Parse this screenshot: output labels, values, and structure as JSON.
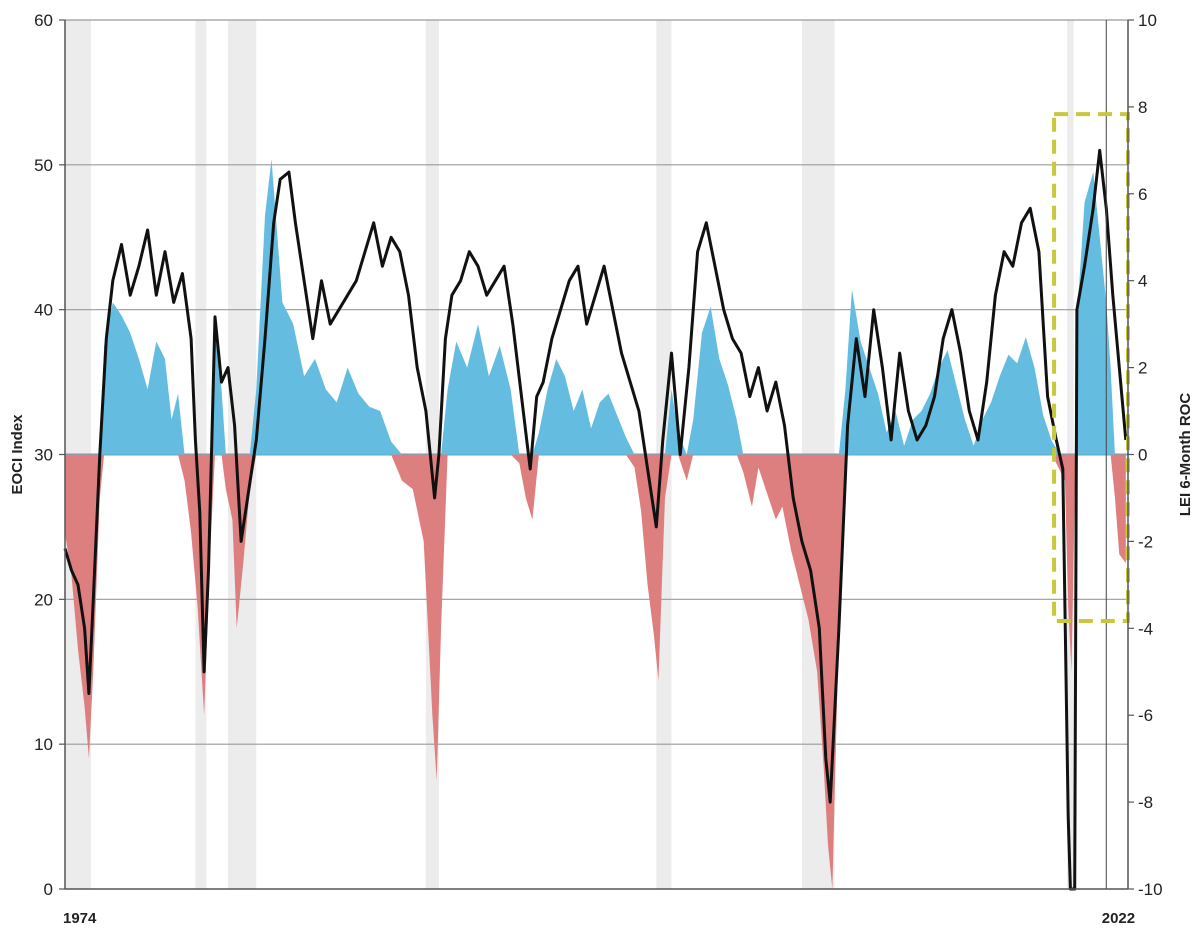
{
  "chart_data": {
    "type": "area",
    "title": "",
    "left_axis": {
      "label": "EOCI Index",
      "ylim": [
        0,
        60
      ],
      "ticks": [
        "0",
        "10",
        "20",
        "30",
        "40",
        "50",
        "60"
      ]
    },
    "right_axis": {
      "label": "LEI 6-Month ROC",
      "ylim": [
        -10,
        10
      ],
      "ticks": [
        "-10",
        "-8",
        "-6",
        "-4",
        "-2",
        "0",
        "2",
        "4",
        "6",
        "8",
        "10"
      ]
    },
    "x_axis": {
      "xlim": [
        1974.0,
        2022.9
      ],
      "tick_labels": [
        {
          "year": 1974.0,
          "label": "1974"
        },
        {
          "year": 2022.0,
          "label": "2022"
        }
      ]
    },
    "recession_bands": [
      [
        1974.0,
        1975.2
      ],
      [
        1980.0,
        1980.5
      ],
      [
        1981.5,
        1982.8
      ],
      [
        1990.6,
        1991.2
      ],
      [
        2001.2,
        2001.9
      ],
      [
        2007.9,
        2009.4
      ],
      [
        2020.1,
        2020.4
      ]
    ],
    "marker_line_year": 2021.9,
    "highlight_box": {
      "x_range": [
        2019.5,
        2022.9
      ],
      "y_range": [
        18.5,
        53.5
      ],
      "color": "#c8c83a"
    },
    "grid": true,
    "colors": {
      "eoci_line": "#111111",
      "lei_positive": "#64bde0",
      "lei_negative": "#dd7f7f",
      "recession_band": "#ececec",
      "grid": "#9a9a9a"
    },
    "series": [
      {
        "name": "EOCI Index",
        "axis": "left",
        "style": "line",
        "points": [
          [
            1974.0,
            23.5
          ],
          [
            1974.3,
            22
          ],
          [
            1974.6,
            21
          ],
          [
            1974.9,
            18
          ],
          [
            1975.1,
            13.5
          ],
          [
            1975.3,
            20
          ],
          [
            1975.6,
            30
          ],
          [
            1975.9,
            38
          ],
          [
            1976.2,
            42
          ],
          [
            1976.6,
            44.5
          ],
          [
            1977.0,
            41
          ],
          [
            1977.4,
            43
          ],
          [
            1977.8,
            45.5
          ],
          [
            1978.2,
            41
          ],
          [
            1978.6,
            44
          ],
          [
            1979.0,
            40.5
          ],
          [
            1979.4,
            42.5
          ],
          [
            1979.8,
            38
          ],
          [
            1980.0,
            31
          ],
          [
            1980.2,
            26
          ],
          [
            1980.4,
            15
          ],
          [
            1980.6,
            22
          ],
          [
            1980.9,
            39.5
          ],
          [
            1981.2,
            35
          ],
          [
            1981.5,
            36
          ],
          [
            1981.8,
            32
          ],
          [
            1982.1,
            24
          ],
          [
            1982.4,
            27
          ],
          [
            1982.8,
            31
          ],
          [
            1983.2,
            38
          ],
          [
            1983.6,
            46
          ],
          [
            1983.9,
            49
          ],
          [
            1984.3,
            49.5
          ],
          [
            1984.6,
            46
          ],
          [
            1985.0,
            42
          ],
          [
            1985.4,
            38
          ],
          [
            1985.8,
            42
          ],
          [
            1986.2,
            39
          ],
          [
            1986.6,
            40
          ],
          [
            1987.0,
            41
          ],
          [
            1987.4,
            42
          ],
          [
            1987.8,
            44
          ],
          [
            1988.2,
            46
          ],
          [
            1988.6,
            43
          ],
          [
            1989.0,
            45
          ],
          [
            1989.4,
            44
          ],
          [
            1989.8,
            41
          ],
          [
            1990.2,
            36
          ],
          [
            1990.6,
            33
          ],
          [
            1991.0,
            27
          ],
          [
            1991.2,
            30
          ],
          [
            1991.5,
            38
          ],
          [
            1991.8,
            41
          ],
          [
            1992.2,
            42
          ],
          [
            1992.6,
            44
          ],
          [
            1993.0,
            43
          ],
          [
            1993.4,
            41
          ],
          [
            1993.8,
            42
          ],
          [
            1994.2,
            43
          ],
          [
            1994.6,
            39
          ],
          [
            1995.0,
            34
          ],
          [
            1995.4,
            29
          ],
          [
            1995.7,
            34
          ],
          [
            1996.0,
            35
          ],
          [
            1996.4,
            38
          ],
          [
            1996.8,
            40
          ],
          [
            1997.2,
            42
          ],
          [
            1997.6,
            43
          ],
          [
            1998.0,
            39
          ],
          [
            1998.4,
            41
          ],
          [
            1998.8,
            43
          ],
          [
            1999.2,
            40
          ],
          [
            1999.6,
            37
          ],
          [
            2000.0,
            35
          ],
          [
            2000.4,
            33
          ],
          [
            2000.8,
            29
          ],
          [
            2001.2,
            25
          ],
          [
            2001.5,
            31
          ],
          [
            2001.9,
            37
          ],
          [
            2002.3,
            30
          ],
          [
            2002.7,
            36
          ],
          [
            2003.1,
            44
          ],
          [
            2003.5,
            46
          ],
          [
            2003.9,
            43
          ],
          [
            2004.3,
            40
          ],
          [
            2004.7,
            38
          ],
          [
            2005.1,
            37
          ],
          [
            2005.5,
            34
          ],
          [
            2005.9,
            36
          ],
          [
            2006.3,
            33
          ],
          [
            2006.7,
            35
          ],
          [
            2007.1,
            32
          ],
          [
            2007.5,
            27
          ],
          [
            2007.9,
            24
          ],
          [
            2008.3,
            22
          ],
          [
            2008.7,
            18
          ],
          [
            2009.0,
            9
          ],
          [
            2009.2,
            6
          ],
          [
            2009.6,
            18
          ],
          [
            2010.0,
            32
          ],
          [
            2010.4,
            38
          ],
          [
            2010.8,
            34
          ],
          [
            2011.2,
            40
          ],
          [
            2011.6,
            36
          ],
          [
            2012.0,
            31
          ],
          [
            2012.4,
            37
          ],
          [
            2012.8,
            33
          ],
          [
            2013.2,
            31
          ],
          [
            2013.6,
            32
          ],
          [
            2014.0,
            34
          ],
          [
            2014.4,
            38
          ],
          [
            2014.8,
            40
          ],
          [
            2015.2,
            37
          ],
          [
            2015.6,
            33
          ],
          [
            2016.0,
            31
          ],
          [
            2016.4,
            35
          ],
          [
            2016.8,
            41
          ],
          [
            2017.2,
            44
          ],
          [
            2017.6,
            43
          ],
          [
            2018.0,
            46
          ],
          [
            2018.4,
            47
          ],
          [
            2018.8,
            44
          ],
          [
            2019.2,
            34
          ],
          [
            2019.6,
            31
          ],
          [
            2019.9,
            29
          ],
          [
            2020.15,
            5
          ],
          [
            2020.25,
            0
          ],
          [
            2020.45,
            0
          ],
          [
            2020.55,
            40
          ],
          [
            2020.9,
            43
          ],
          [
            2021.3,
            47
          ],
          [
            2021.6,
            51
          ],
          [
            2021.9,
            47
          ],
          [
            2022.2,
            41
          ],
          [
            2022.5,
            36
          ],
          [
            2022.8,
            31
          ]
        ]
      },
      {
        "name": "LEI 6-Month ROC",
        "axis": "right",
        "style": "filled-area",
        "points": [
          [
            1974.0,
            -1.8
          ],
          [
            1974.3,
            -2.8
          ],
          [
            1974.6,
            -4.5
          ],
          [
            1974.9,
            -5.8
          ],
          [
            1975.1,
            -7
          ],
          [
            1975.3,
            -5
          ],
          [
            1975.6,
            -1
          ],
          [
            1975.8,
            2.5
          ],
          [
            1976.2,
            3.5
          ],
          [
            1976.6,
            3.2
          ],
          [
            1977.0,
            2.8
          ],
          [
            1977.4,
            2.2
          ],
          [
            1977.8,
            1.5
          ],
          [
            1978.2,
            2.6
          ],
          [
            1978.6,
            2.2
          ],
          [
            1978.9,
            0.8
          ],
          [
            1979.2,
            1.4
          ],
          [
            1979.5,
            -0.6
          ],
          [
            1979.8,
            -1.8
          ],
          [
            1980.1,
            -3.5
          ],
          [
            1980.4,
            -6
          ],
          [
            1980.7,
            -2
          ],
          [
            1980.9,
            2.8
          ],
          [
            1981.2,
            1.5
          ],
          [
            1981.4,
            -0.8
          ],
          [
            1981.7,
            -1.5
          ],
          [
            1981.9,
            -4
          ],
          [
            1982.2,
            -2.5
          ],
          [
            1982.5,
            -0.8
          ],
          [
            1982.8,
            1.5
          ],
          [
            1983.2,
            5.5
          ],
          [
            1983.5,
            6.8
          ],
          [
            1984.0,
            3.5
          ],
          [
            1984.5,
            3
          ],
          [
            1985.0,
            1.8
          ],
          [
            1985.5,
            2.2
          ],
          [
            1986.0,
            1.5
          ],
          [
            1986.5,
            1.2
          ],
          [
            1987.0,
            2
          ],
          [
            1987.5,
            1.4
          ],
          [
            1988.0,
            1.1
          ],
          [
            1988.5,
            1
          ],
          [
            1989.0,
            0.3
          ],
          [
            1989.5,
            -0.6
          ],
          [
            1990.0,
            -0.8
          ],
          [
            1990.5,
            -2
          ],
          [
            1990.9,
            -6
          ],
          [
            1991.1,
            -7.5
          ],
          [
            1991.3,
            -4
          ],
          [
            1991.6,
            1.5
          ],
          [
            1992.0,
            2.6
          ],
          [
            1992.5,
            2
          ],
          [
            1993.0,
            3
          ],
          [
            1993.5,
            1.8
          ],
          [
            1994.0,
            2.5
          ],
          [
            1994.5,
            1.5
          ],
          [
            1994.9,
            -0.2
          ],
          [
            1995.2,
            -1
          ],
          [
            1995.5,
            -1.5
          ],
          [
            1995.8,
            0.5
          ],
          [
            1996.2,
            1.5
          ],
          [
            1996.6,
            2.2
          ],
          [
            1997.0,
            1.8
          ],
          [
            1997.4,
            1
          ],
          [
            1997.8,
            1.5
          ],
          [
            1998.2,
            0.6
          ],
          [
            1998.6,
            1.2
          ],
          [
            1999.0,
            1.4
          ],
          [
            1999.4,
            0.9
          ],
          [
            1999.8,
            0.4
          ],
          [
            2000.2,
            -0.3
          ],
          [
            2000.5,
            -1.3
          ],
          [
            2000.8,
            -3
          ],
          [
            2001.1,
            -4.2
          ],
          [
            2001.3,
            -5.2
          ],
          [
            2001.6,
            -1
          ],
          [
            2001.9,
            1.5
          ],
          [
            2002.2,
            0.5
          ],
          [
            2002.6,
            -0.6
          ],
          [
            2002.9,
            0.8
          ],
          [
            2003.3,
            2.8
          ],
          [
            2003.7,
            3.4
          ],
          [
            2004.1,
            2.2
          ],
          [
            2004.5,
            1.6
          ],
          [
            2004.9,
            0.8
          ],
          [
            2005.2,
            -0.4
          ],
          [
            2005.6,
            -1.2
          ],
          [
            2005.9,
            -0.3
          ],
          [
            2006.3,
            -0.9
          ],
          [
            2006.7,
            -1.5
          ],
          [
            2007.0,
            -1.2
          ],
          [
            2007.4,
            -2.2
          ],
          [
            2007.8,
            -3
          ],
          [
            2008.2,
            -3.8
          ],
          [
            2008.6,
            -5
          ],
          [
            2008.9,
            -7.2
          ],
          [
            2009.1,
            -9
          ],
          [
            2009.3,
            -10
          ],
          [
            2009.6,
            -4
          ],
          [
            2009.9,
            1.5
          ],
          [
            2010.2,
            3.8
          ],
          [
            2010.6,
            2.6
          ],
          [
            2011.0,
            2
          ],
          [
            2011.4,
            1.4
          ],
          [
            2011.8,
            0.5
          ],
          [
            2012.2,
            1
          ],
          [
            2012.6,
            0.2
          ],
          [
            2013.0,
            0.8
          ],
          [
            2013.4,
            1
          ],
          [
            2013.8,
            1.4
          ],
          [
            2014.2,
            2
          ],
          [
            2014.6,
            2.4
          ],
          [
            2015.0,
            1.6
          ],
          [
            2015.4,
            0.8
          ],
          [
            2015.8,
            0.2
          ],
          [
            2016.2,
            0.8
          ],
          [
            2016.6,
            1.2
          ],
          [
            2017.0,
            1.8
          ],
          [
            2017.4,
            2.3
          ],
          [
            2017.8,
            2.1
          ],
          [
            2018.2,
            2.7
          ],
          [
            2018.6,
            2
          ],
          [
            2019.0,
            0.9
          ],
          [
            2019.4,
            0.3
          ],
          [
            2019.8,
            -0.4
          ],
          [
            2020.0,
            -0.6
          ],
          [
            2020.15,
            -3.5
          ],
          [
            2020.3,
            -5
          ],
          [
            2020.45,
            -1
          ],
          [
            2020.6,
            3.5
          ],
          [
            2020.9,
            5.8
          ],
          [
            2021.3,
            6.5
          ],
          [
            2021.6,
            5
          ],
          [
            2021.9,
            3.5
          ],
          [
            2022.1,
            2
          ],
          [
            2022.3,
            -1
          ],
          [
            2022.5,
            -2.3
          ],
          [
            2022.8,
            -2.5
          ]
        ]
      }
    ]
  }
}
